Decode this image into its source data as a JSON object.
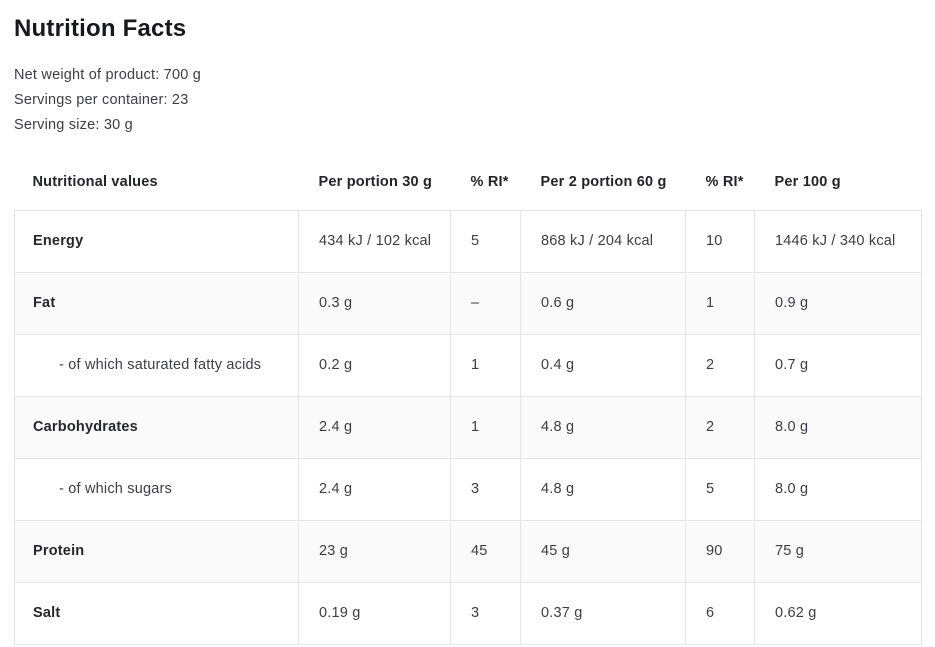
{
  "page": {
    "title": "Nutrition Facts",
    "meta": {
      "net_weight": "Net weight of product: 700 g",
      "servings_per_container": "Servings per container: 23",
      "serving_size": "Serving size: 30 g"
    }
  },
  "colors": {
    "background": "#ffffff",
    "title_text": "#17171f",
    "body_text": "#3d3d47",
    "border": "#e4e4e4",
    "alt_row_bg": "#fafafa"
  },
  "table": {
    "headers": [
      "Nutritional values",
      "Per portion 30 g",
      "% RI*",
      "Per 2 portion 60 g",
      "% RI*",
      "Per 100 g"
    ],
    "rows": [
      {
        "name": "Energy",
        "per_portion": "434 kJ / 102 kcal",
        "ri_portion": "5",
        "per_2_portion": "868 kJ / 204 kcal",
        "ri_2_portion": "10",
        "per_100g": "1446 kJ / 340 kcal"
      },
      {
        "name": "Fat",
        "per_portion": "0.3 g",
        "ri_portion": "–",
        "per_2_portion": "0.6 g",
        "ri_2_portion": "1",
        "per_100g": "0.9 g"
      },
      {
        "name": "- of which saturated fatty acids",
        "per_portion": "0.2 g",
        "ri_portion": "1",
        "per_2_portion": "0.4 g",
        "ri_2_portion": "2",
        "per_100g": "0.7 g"
      },
      {
        "name": "Carbohydrates",
        "per_portion": "2.4 g",
        "ri_portion": "1",
        "per_2_portion": "4.8 g",
        "ri_2_portion": "2",
        "per_100g": "8.0 g"
      },
      {
        "name": "- of which sugars",
        "per_portion": "2.4 g",
        "ri_portion": "3",
        "per_2_portion": "4.8 g",
        "ri_2_portion": "5",
        "per_100g": "8.0 g"
      },
      {
        "name": "Protein",
        "per_portion": "23 g",
        "ri_portion": "45",
        "per_2_portion": "45 g",
        "ri_2_portion": "90",
        "per_100g": "75 g"
      },
      {
        "name": "Salt",
        "per_portion": "0.19 g",
        "ri_portion": "3",
        "per_2_portion": "0.37 g",
        "ri_2_portion": "6",
        "per_100g": "0.62 g"
      }
    ]
  }
}
